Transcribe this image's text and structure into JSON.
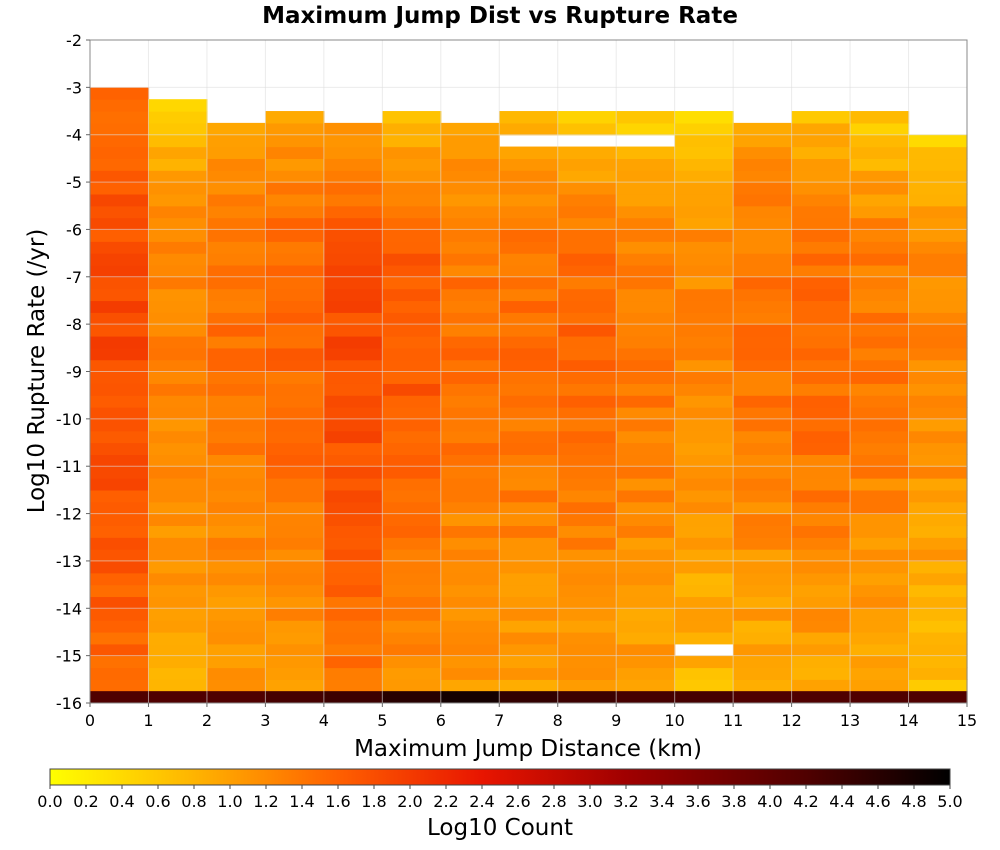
{
  "chart_data": {
    "type": "heatmap",
    "title": "Maximum Jump Dist vs Rupture Rate",
    "xlabel": "Maximum Jump Distance (km)",
    "ylabel": "Log10 Rupture Rate (/yr)",
    "xlim": [
      0,
      15
    ],
    "ylim": [
      -16,
      -2
    ],
    "x_ticks": [
      "0",
      "1",
      "2",
      "3",
      "4",
      "5",
      "6",
      "7",
      "8",
      "9",
      "10",
      "11",
      "12",
      "13",
      "14",
      "15"
    ],
    "y_ticks": [
      "-2",
      "-3",
      "-4",
      "-5",
      "-6",
      "-7",
      "-8",
      "-9",
      "-10",
      "-11",
      "-12",
      "-13",
      "-14",
      "-15",
      "-16"
    ],
    "x_bin_width": 1,
    "y_bin_height": 0.25,
    "grid": true,
    "colorbar": {
      "label": "Log10 Count",
      "range": [
        0,
        5
      ],
      "ticks": [
        "0.0",
        "0.2",
        "0.4",
        "0.6",
        "0.8",
        "1.0",
        "1.2",
        "1.4",
        "1.6",
        "1.8",
        "2.0",
        "2.2",
        "2.4",
        "2.6",
        "2.8",
        "3.0",
        "3.2",
        "3.4",
        "3.6",
        "3.8",
        "4.0",
        "4.2",
        "4.4",
        "4.6",
        "4.8",
        "5.0"
      ],
      "stops": [
        {
          "v": 0.0,
          "color": "#ffff00"
        },
        {
          "v": 0.8,
          "color": "#ffb400"
        },
        {
          "v": 1.6,
          "color": "#ff6000"
        },
        {
          "v": 2.4,
          "color": "#e81500"
        },
        {
          "v": 3.2,
          "color": "#a00000"
        },
        {
          "v": 4.2,
          "color": "#500000"
        },
        {
          "v": 5.0,
          "color": "#000000"
        }
      ]
    },
    "bottom_row": {
      "y": -15.875,
      "values": [
        4.2,
        4.2,
        4.2,
        4.3,
        4.4,
        4.6,
        4.8,
        4.5,
        4.4,
        4.3,
        4.3,
        4.2,
        4.2,
        4.2,
        4.2
      ]
    },
    "top_edges": [
      -3.0,
      -3.25,
      -3.75,
      -3.5,
      -3.75,
      -3.5,
      -3.75,
      -3.5,
      -3.5,
      -3.5,
      -3.5,
      -3.75,
      -3.5,
      -3.5,
      -4.0
    ],
    "missing_cells": [
      [
        7,
        -4.125
      ],
      [
        8,
        -4.125
      ],
      [
        9,
        -4.125
      ],
      [
        10,
        -14.875
      ]
    ],
    "columns": [
      {
        "low": 1.55,
        "mid": 1.85,
        "top": 1.45
      },
      {
        "low": 0.9,
        "mid": 1.3,
        "top": 0.55
      },
      {
        "low": 1.0,
        "mid": 1.45,
        "top": 0.95
      },
      {
        "low": 1.05,
        "mid": 1.55,
        "top": 1.0
      },
      {
        "low": 1.35,
        "mid": 1.85,
        "top": 1.05
      },
      {
        "low": 1.15,
        "mid": 1.7,
        "top": 0.75
      },
      {
        "low": 1.05,
        "mid": 1.45,
        "top": 0.9
      },
      {
        "low": 0.95,
        "mid": 1.5,
        "top": 0.7
      },
      {
        "low": 1.0,
        "mid": 1.55,
        "top": 0.6
      },
      {
        "low": 0.95,
        "mid": 1.4,
        "top": 0.45
      },
      {
        "low": 0.75,
        "mid": 1.25,
        "top": 0.4
      },
      {
        "low": 0.85,
        "mid": 1.45,
        "top": 0.95
      },
      {
        "low": 0.95,
        "mid": 1.5,
        "top": 0.7
      },
      {
        "low": 0.9,
        "mid": 1.4,
        "top": 0.55
      },
      {
        "low": 0.7,
        "mid": 1.25,
        "top": 0.5
      }
    ]
  }
}
